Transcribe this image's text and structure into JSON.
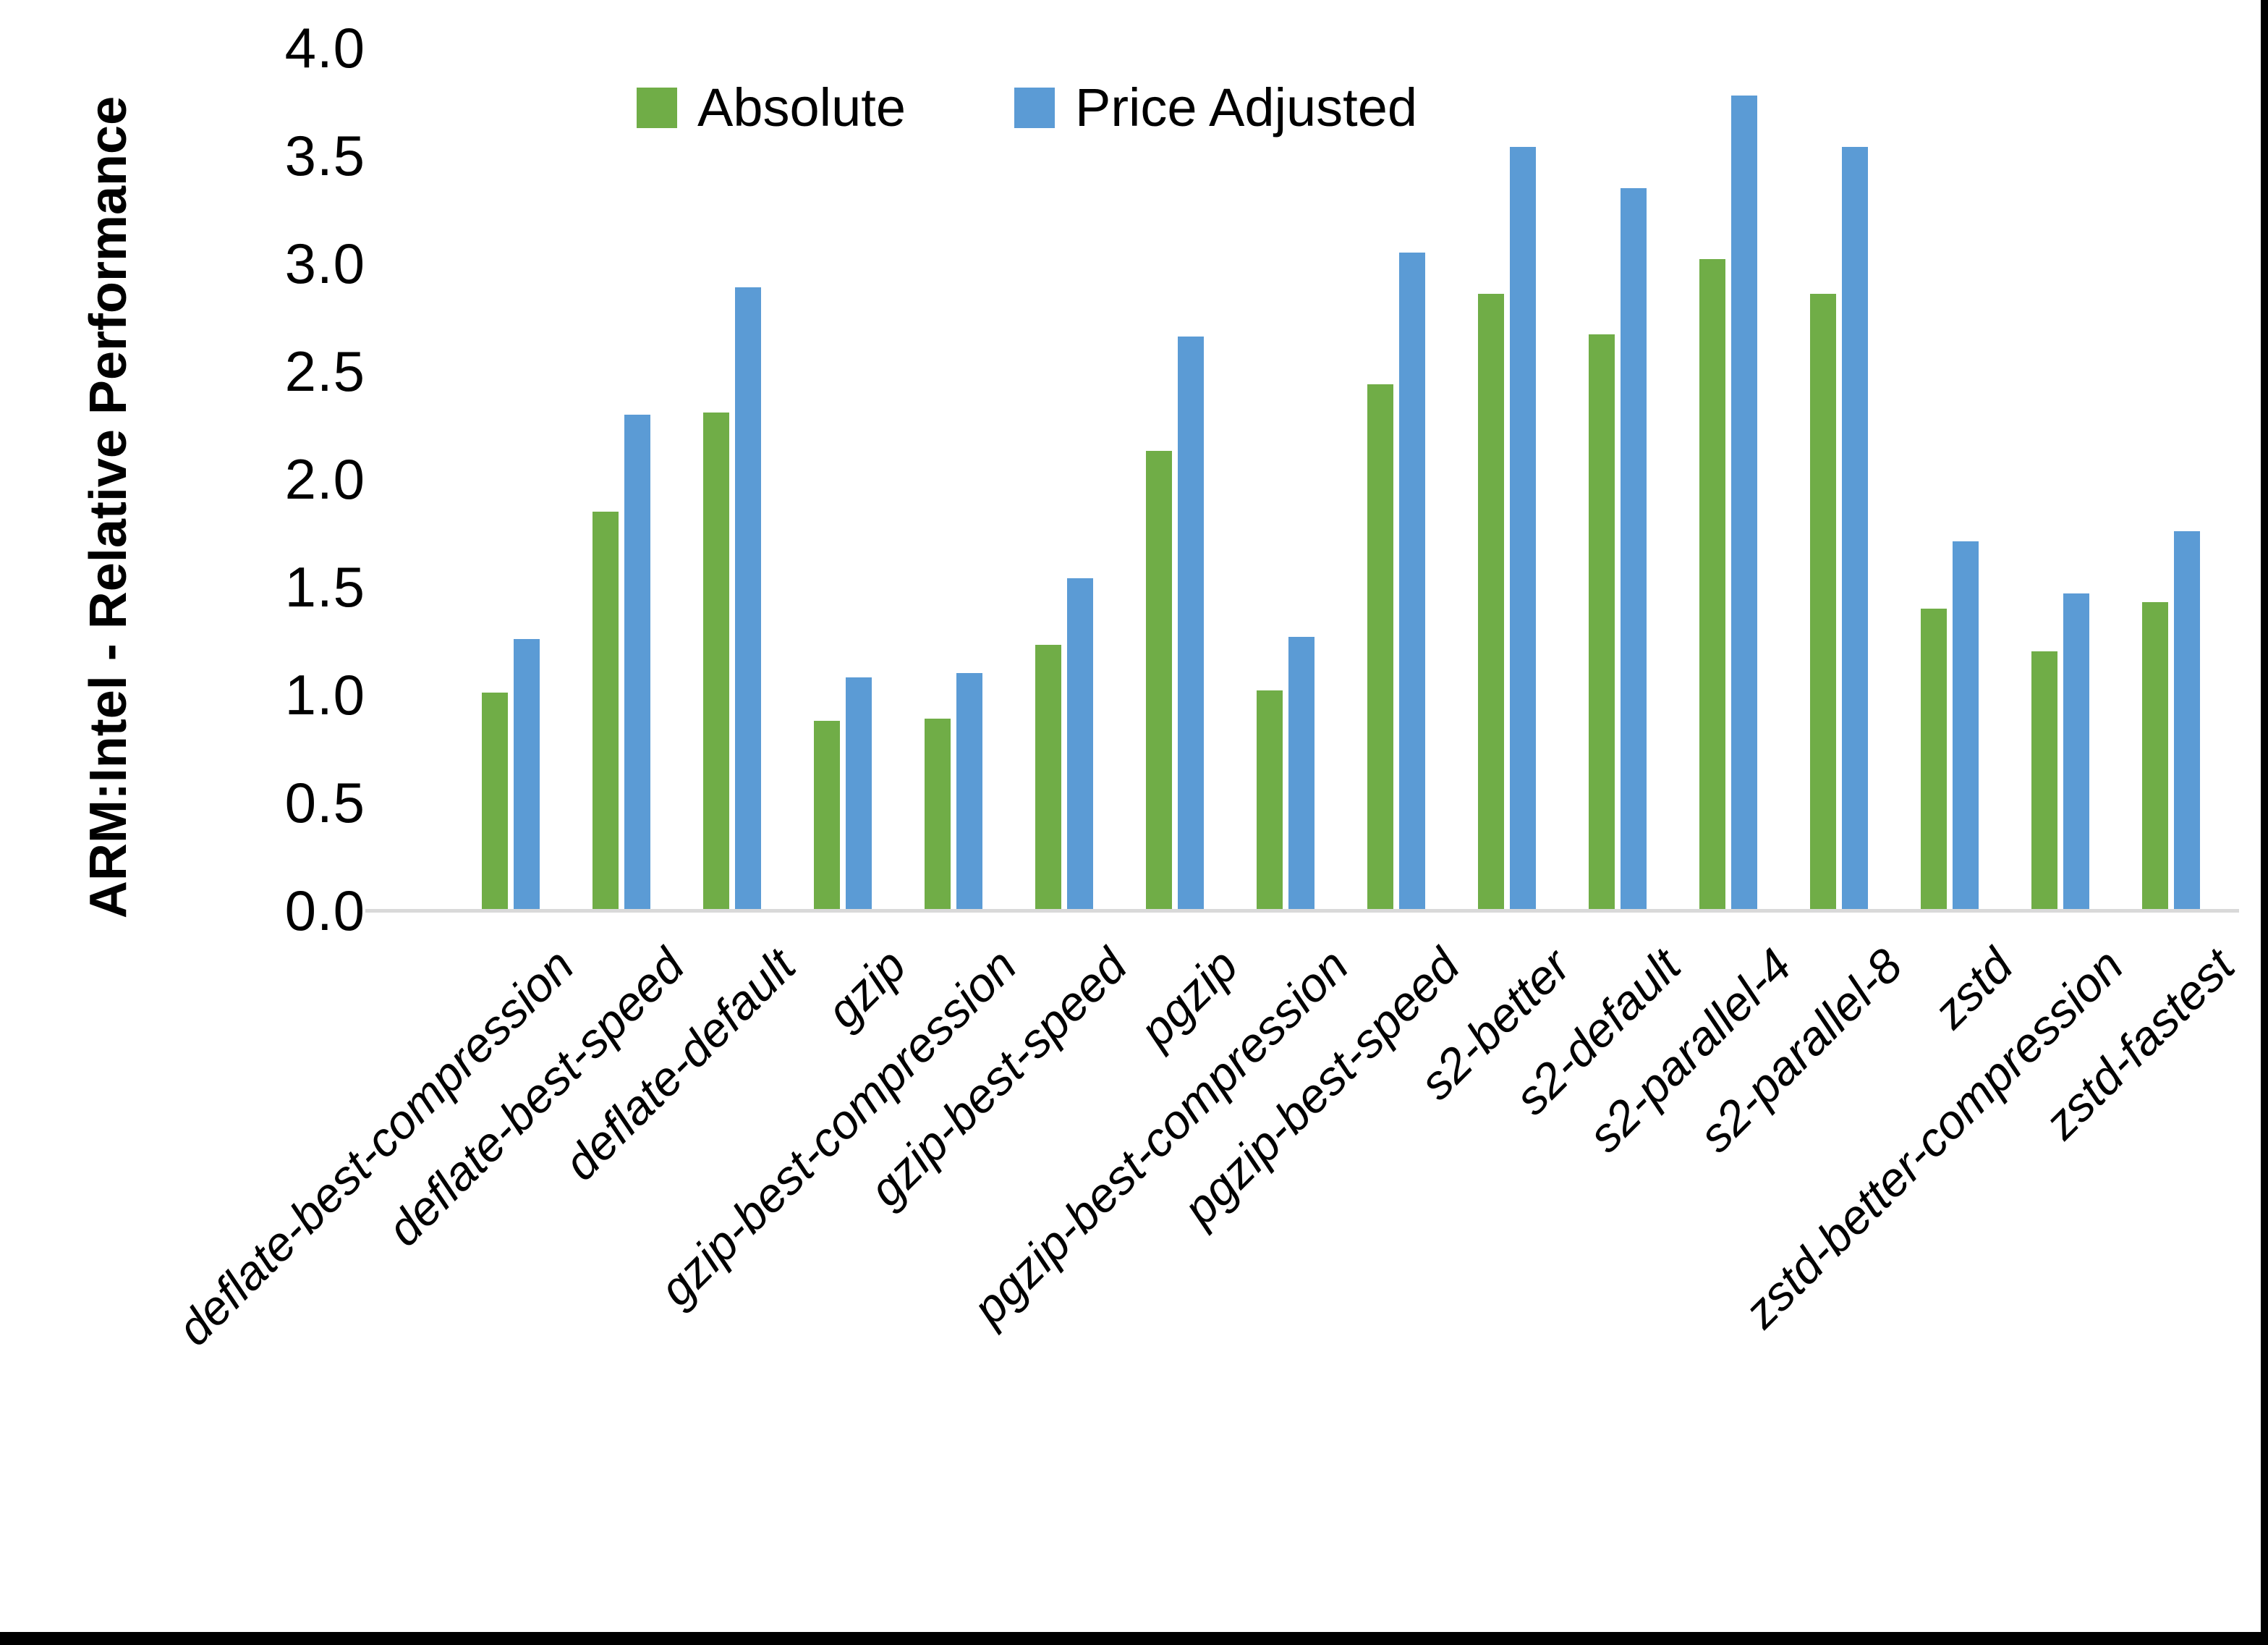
{
  "chart_data": {
    "type": "bar",
    "title": "",
    "ylabel": "ARM:Intel - Relative Performance",
    "xlabel": "",
    "ylim": [
      0.0,
      4.0
    ],
    "ytick_step": 0.5,
    "grid": false,
    "legend_position": "top",
    "categories": [
      "deflate-best-compression",
      "deflate-best-speed",
      "deflate-default",
      "gzip",
      "gzip-best-compression",
      "gzip-best-speed",
      "pgzip",
      "pgzip-best-compression",
      "pgzip-best-speed",
      "s2-better",
      "s2-default",
      "s2-parallel-4",
      "s2-parallel-8",
      "zstd",
      "zstd-better-compression",
      "zstd-fastest"
    ],
    "series": [
      {
        "name": "Absolute",
        "color": "#70AD47",
        "values": [
          1.01,
          1.85,
          2.31,
          0.88,
          0.89,
          1.23,
          2.13,
          1.02,
          2.44,
          2.86,
          2.67,
          3.02,
          2.86,
          1.4,
          1.2,
          1.43
        ]
      },
      {
        "name": "Price Adjusted",
        "color": "#5B9BD5",
        "values": [
          1.26,
          2.3,
          2.89,
          1.08,
          1.1,
          1.54,
          2.66,
          1.27,
          3.05,
          3.54,
          3.35,
          3.78,
          3.54,
          1.71,
          1.47,
          1.76
        ]
      }
    ],
    "axis_line_color": "#d9d9d9",
    "ytick_labels": [
      "0.0",
      "0.5",
      "1.0",
      "1.5",
      "2.0",
      "2.5",
      "3.0",
      "3.5",
      "4.0"
    ]
  }
}
